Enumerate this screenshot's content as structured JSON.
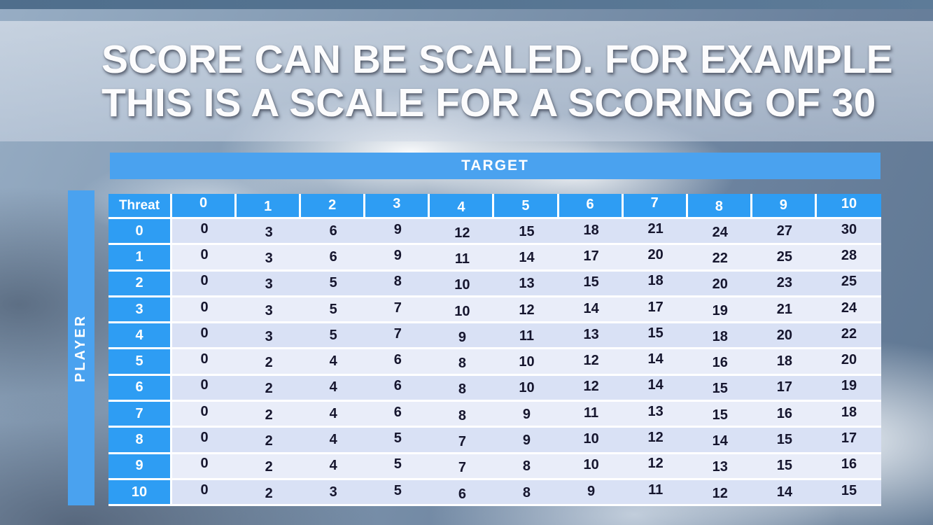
{
  "title": {
    "line1": "SCORE CAN BE SCALED. FOR EXAMPLE",
    "line2": "THIS IS A SCALE FOR A SCORING OF 30"
  },
  "table": {
    "target_label": "TARGET",
    "player_label": "PLAYER",
    "threat_label": "Threat",
    "col_headers": [
      "0",
      "1",
      "2",
      "3",
      "4",
      "5",
      "6",
      "7",
      "8",
      "9",
      "10"
    ],
    "rows": [
      {
        "header": "0",
        "values": [
          0,
          3,
          6,
          9,
          12,
          15,
          18,
          21,
          24,
          27,
          30
        ]
      },
      {
        "header": "1",
        "values": [
          0,
          3,
          6,
          9,
          11,
          14,
          17,
          20,
          22,
          25,
          28
        ]
      },
      {
        "header": "2",
        "values": [
          0,
          3,
          5,
          8,
          10,
          13,
          15,
          18,
          20,
          23,
          25
        ]
      },
      {
        "header": "3",
        "values": [
          0,
          3,
          5,
          7,
          10,
          12,
          14,
          17,
          19,
          21,
          24
        ]
      },
      {
        "header": "4",
        "values": [
          0,
          3,
          5,
          7,
          9,
          11,
          13,
          15,
          18,
          20,
          22
        ]
      },
      {
        "header": "5",
        "values": [
          0,
          2,
          4,
          6,
          8,
          10,
          12,
          14,
          16,
          18,
          20
        ]
      },
      {
        "header": "6",
        "values": [
          0,
          2,
          4,
          6,
          8,
          10,
          12,
          14,
          15,
          17,
          19
        ]
      },
      {
        "header": "7",
        "values": [
          0,
          2,
          4,
          6,
          8,
          9,
          11,
          13,
          15,
          16,
          18
        ]
      },
      {
        "header": "8",
        "values": [
          0,
          2,
          4,
          5,
          7,
          9,
          10,
          12,
          14,
          15,
          17
        ]
      },
      {
        "header": "9",
        "values": [
          0,
          2,
          4,
          5,
          7,
          8,
          10,
          12,
          13,
          15,
          16
        ]
      },
      {
        "header": "10",
        "values": [
          0,
          2,
          3,
          5,
          6,
          8,
          9,
          11,
          12,
          14,
          15
        ]
      }
    ]
  },
  "colors": {
    "header_blue": "#2E9DF3",
    "bar_blue": "#4AA2EF",
    "row_even": "#D9E1F5",
    "row_odd": "#E9EDF9",
    "top_strip": "#54718F"
  }
}
